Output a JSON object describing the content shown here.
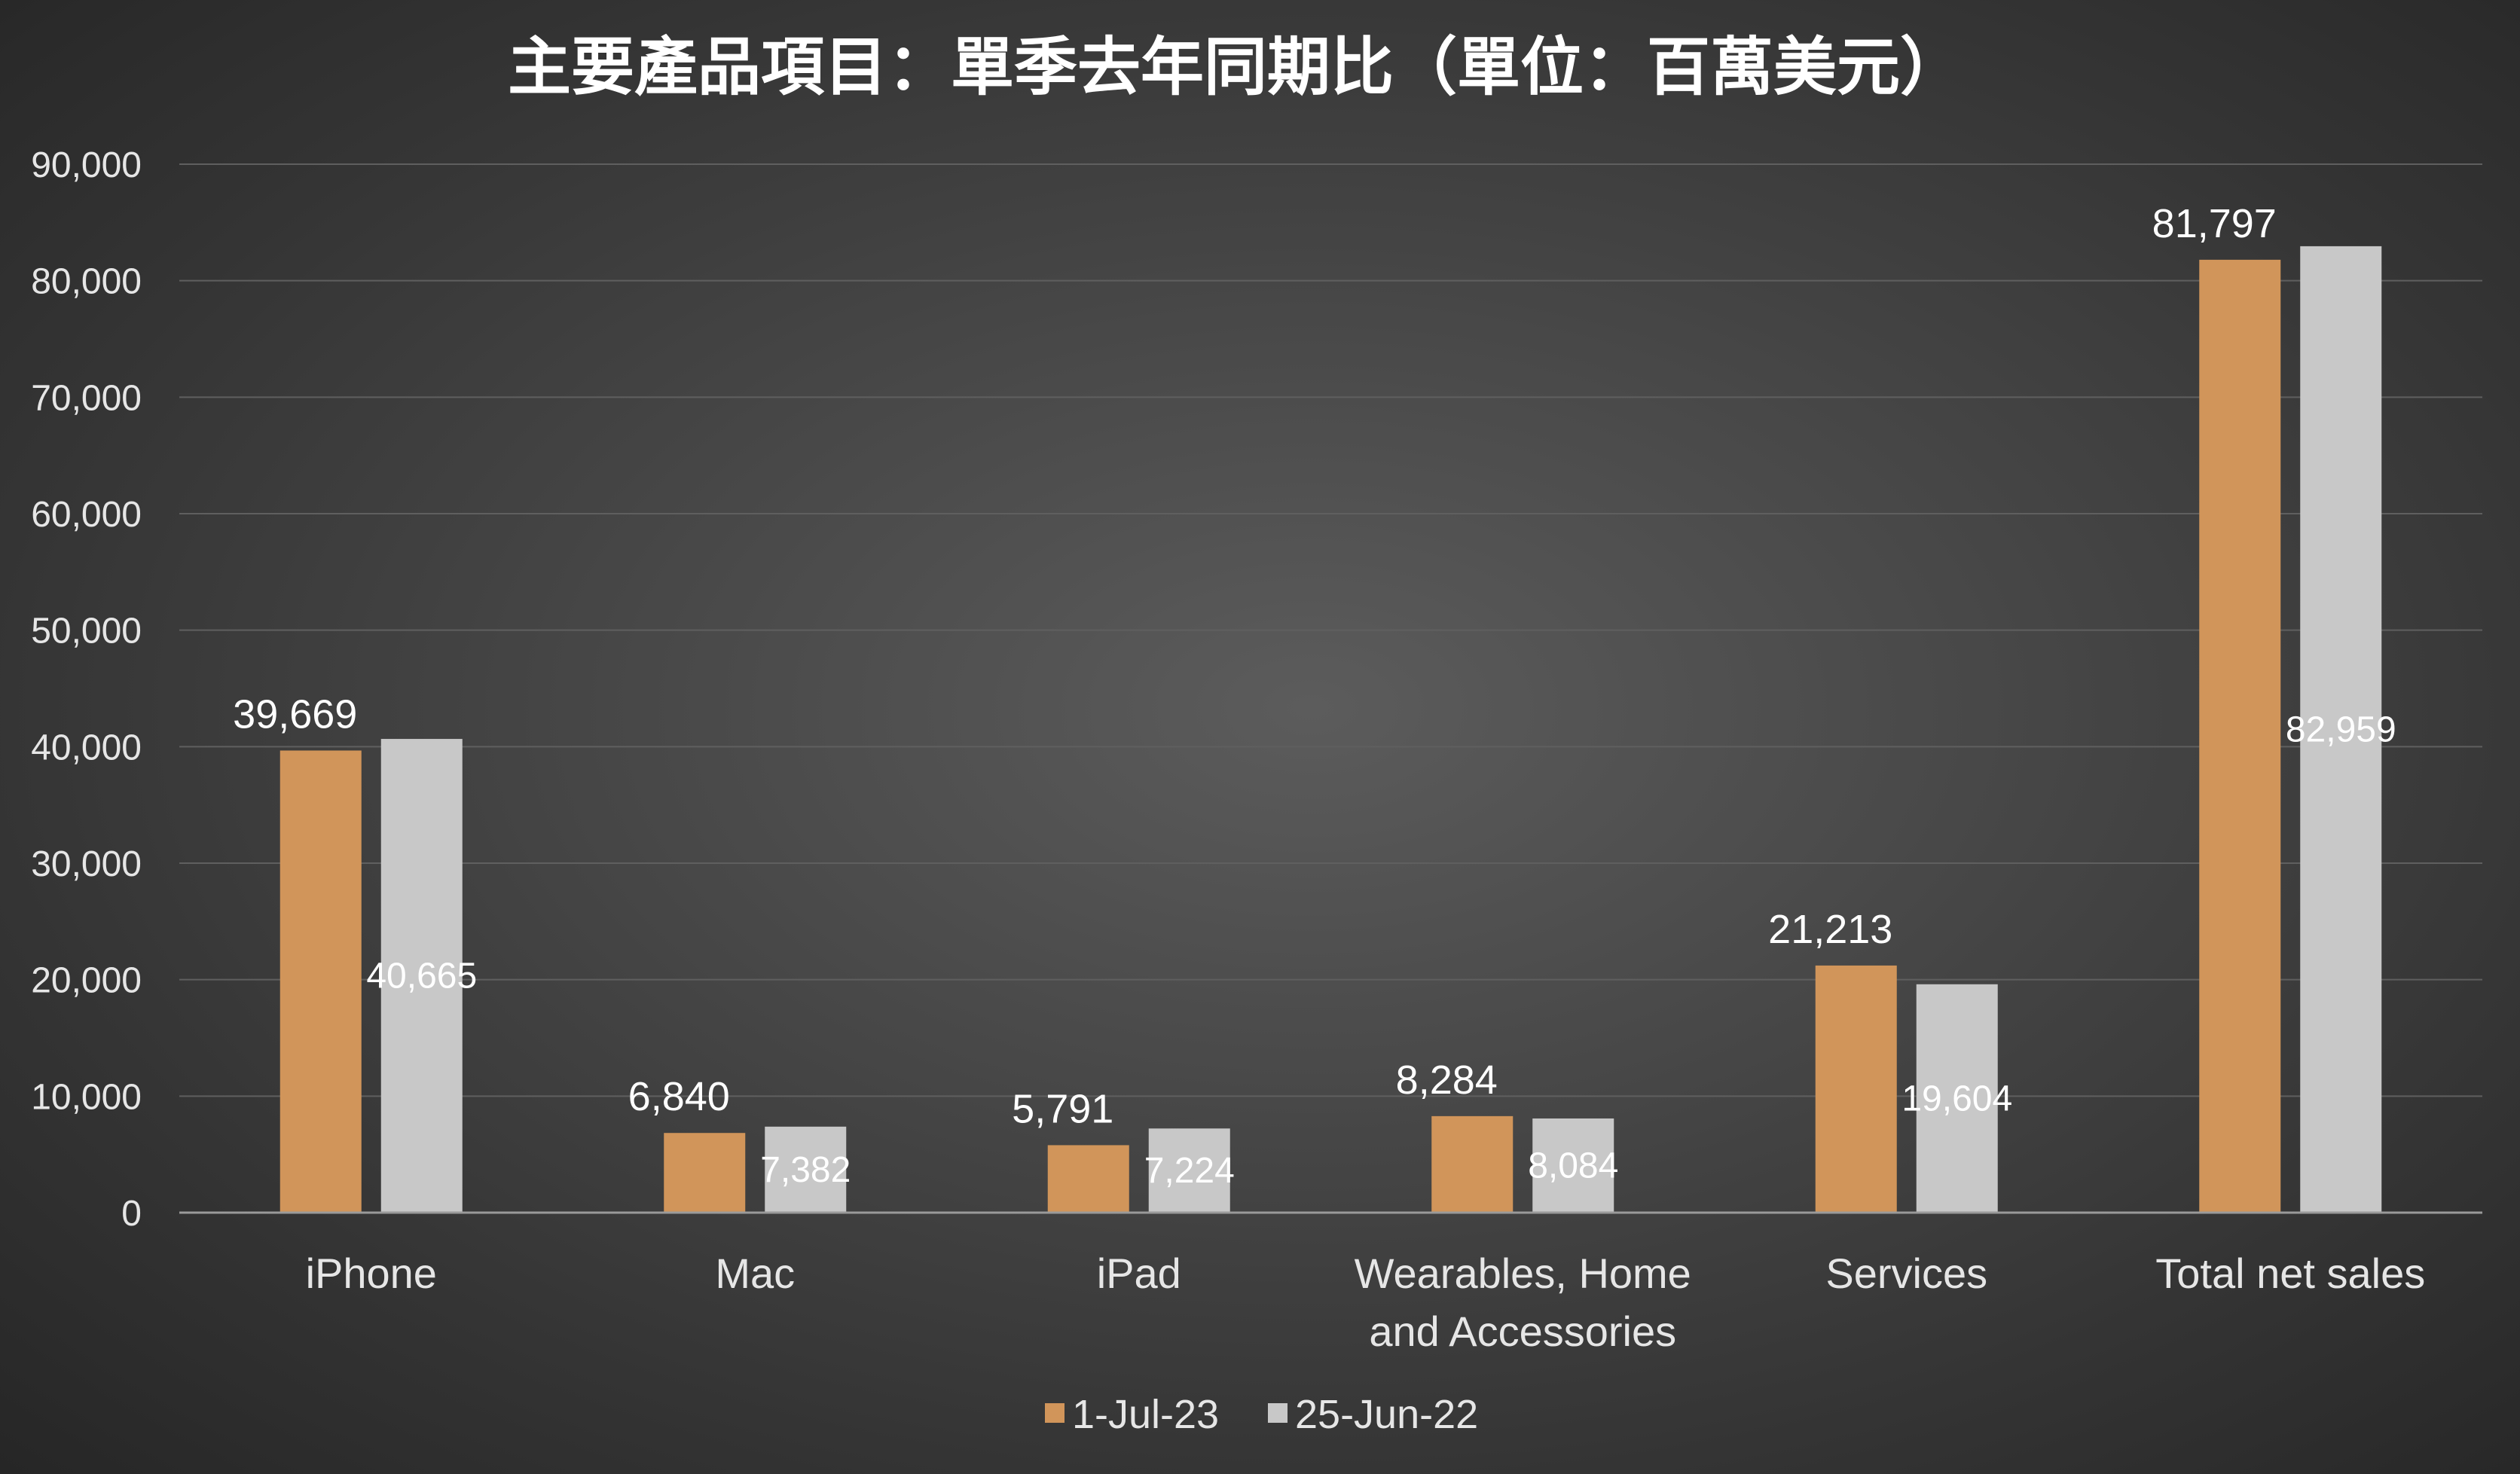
{
  "chart_data": {
    "type": "bar",
    "title": "主要產品項目：單季去年同期比（單位：百萬美元）",
    "xlabel": "",
    "ylabel": "",
    "categories": [
      [
        "iPhone"
      ],
      [
        "Mac"
      ],
      [
        "iPad"
      ],
      [
        "Wearables, Home",
        "and Accessories"
      ],
      [
        "Services"
      ],
      [
        "Total net sales"
      ]
    ],
    "series": [
      {
        "name": "1-Jul-23",
        "color": "#d1955a",
        "values": [
          39669,
          6840,
          5791,
          8284,
          21213,
          81797
        ],
        "data_labels": [
          "39,669",
          "6,840",
          "5,791",
          "8,284",
          "21,213",
          "81,797"
        ],
        "label_position": "outside-end"
      },
      {
        "name": "25-Jun-22",
        "color": "#c8c8c8",
        "values": [
          40665,
          7382,
          7224,
          8084,
          19604,
          82959
        ],
        "data_labels": [
          "40,665",
          "7,382",
          "7,224",
          "8,084",
          "19,604",
          "82,959"
        ],
        "label_position": "center"
      }
    ],
    "ylim": [
      0,
      90000
    ],
    "yticks": [
      0,
      10000,
      20000,
      30000,
      40000,
      50000,
      60000,
      70000,
      80000,
      90000
    ],
    "ytick_labels": [
      "0",
      "10,000",
      "20,000",
      "30,000",
      "40,000",
      "50,000",
      "60,000",
      "70,000",
      "80,000",
      "90,000"
    ],
    "grid": true,
    "legend_position": "bottom-center",
    "background": "dark-radial",
    "gridline_color": "#5f5f5f",
    "axis_color": "#9a9a9a"
  }
}
